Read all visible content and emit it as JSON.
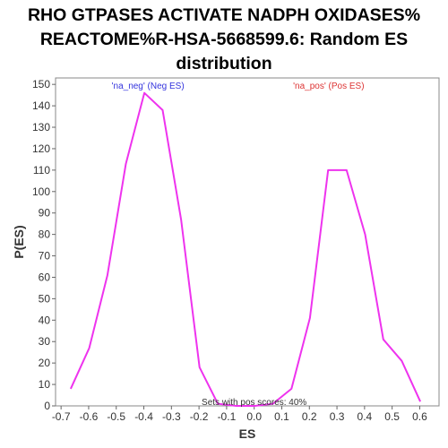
{
  "chart_data": {
    "type": "line",
    "title_lines": [
      "RHO GTPASES ACTIVATE NADPH OXIDASES%",
      "REACTOME%R-HSA-5668599.6: Random ES",
      "distribution"
    ],
    "xlabel": "ES",
    "ylabel": "P(ES)",
    "xlim": [
      -0.72,
      0.67
    ],
    "ylim": [
      0,
      153
    ],
    "xticks": [
      -0.7,
      -0.6,
      -0.5,
      -0.4,
      -0.3,
      -0.2,
      -0.1,
      0.0,
      0.1,
      0.2,
      0.3,
      0.4,
      0.5,
      0.6
    ],
    "xtick_labels": [
      "-0.7",
      "-0.6",
      "-0.5",
      "-0.4",
      "-0.3",
      "-0.2",
      "-0.1",
      "0.0",
      "0.1",
      "0.2",
      "0.3",
      "0.4",
      "0.5",
      "0.6"
    ],
    "yticks": [
      0,
      10,
      20,
      30,
      40,
      50,
      60,
      70,
      80,
      90,
      100,
      110,
      120,
      130,
      140,
      150
    ],
    "ytick_labels": [
      "0",
      "10",
      "20",
      "30",
      "40",
      "50",
      "60",
      "70",
      "80",
      "90",
      "100",
      "110",
      "120",
      "130",
      "140",
      "150"
    ],
    "grid": false,
    "series": [
      {
        "color": "#ee33ee",
        "x": [
          -0.665,
          -0.598,
          -0.532,
          -0.465,
          -0.398,
          -0.332,
          -0.265,
          -0.198,
          -0.132,
          -0.065,
          0.002,
          0.068,
          0.135,
          0.202,
          0.268,
          0.335,
          0.402,
          0.468,
          0.535,
          0.602
        ],
        "y": [
          8,
          27,
          61,
          113,
          146,
          138,
          87,
          18,
          1,
          0,
          0,
          1,
          8,
          41,
          110,
          110,
          80,
          31,
          21,
          2
        ]
      }
    ],
    "annotations": [
      {
        "text": "'na_neg' (Neg ES)",
        "color": "#3333dd",
        "x": -0.385,
        "y": 148
      },
      {
        "text": "'na_pos' (Pos ES)",
        "color": "#dd3333",
        "x": 0.27,
        "y": 148
      },
      {
        "text": "Sets with pos scores: 40%",
        "color": "#333333",
        "x": 0.0,
        "y": 0.5
      }
    ]
  }
}
